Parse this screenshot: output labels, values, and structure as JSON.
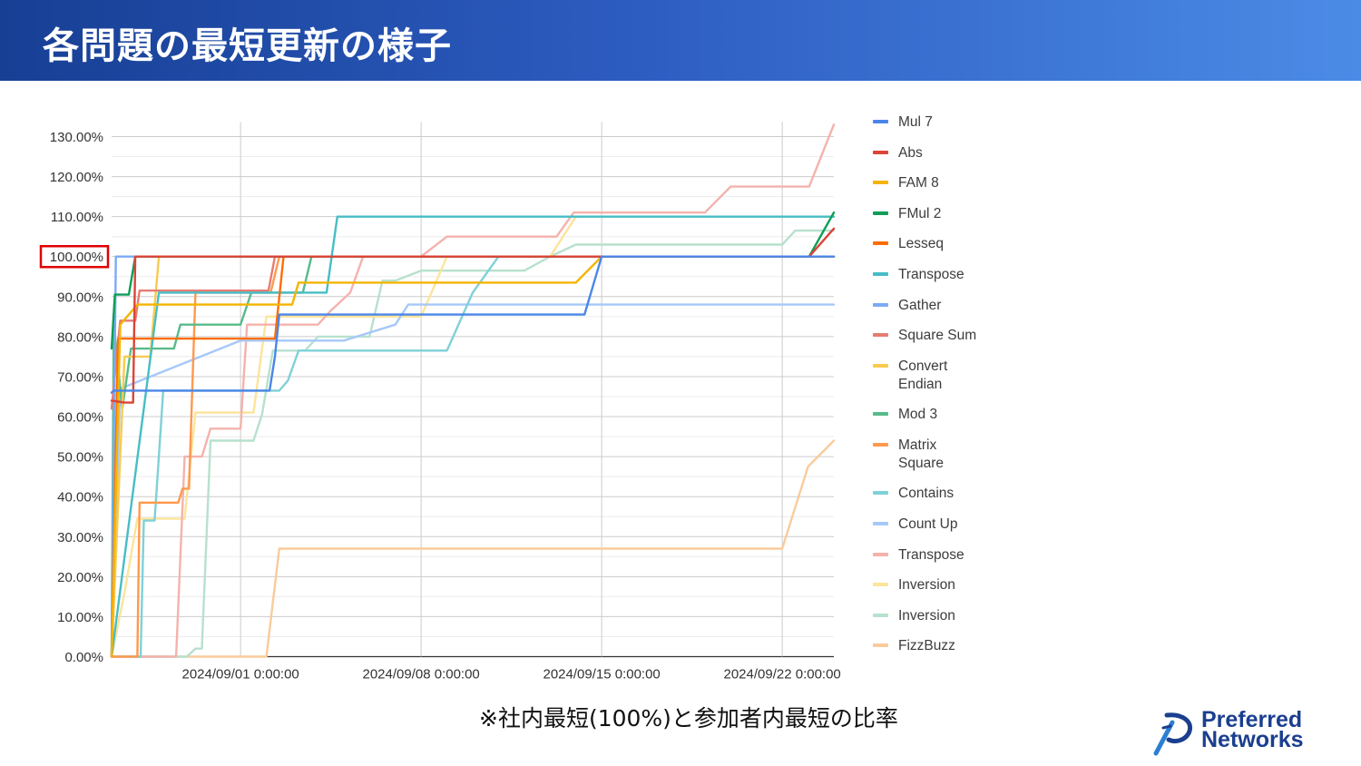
{
  "slide": {
    "title": "各問題の最短更新の様子",
    "footnote": "※社内最短(100%)と参加者内最短の比率",
    "logo_text": [
      "Preferred",
      "Networks"
    ],
    "header_gradient": [
      "#173f94",
      "#4b8be6"
    ],
    "highlight_color": "#e00000"
  },
  "chart_data": {
    "type": "line",
    "title": "",
    "xlabel": "",
    "ylabel": "",
    "x_type": "date",
    "xlim": [
      "2024/08/27 0:00:00",
      "2024/09/24 0:00:00"
    ],
    "ylim": [
      0,
      1.3
    ],
    "yticks": [
      0,
      0.1,
      0.2,
      0.3,
      0.4,
      0.5,
      0.6,
      0.7,
      0.8,
      0.9,
      1.0,
      1.1,
      1.2,
      1.3
    ],
    "ytick_labels": [
      "0.00%",
      "10.00%",
      "20.00%",
      "30.00%",
      "40.00%",
      "50.00%",
      "60.00%",
      "70.00%",
      "80.00%",
      "90.00%",
      "100.00%",
      "110.00%",
      "120.00%",
      "130.00%"
    ],
    "xticks": [
      "2024/09/01 0:00:00",
      "2024/09/08 0:00:00",
      "2024/09/15 0:00:00",
      "2024/09/22 0:00:00"
    ],
    "highlighted_tick": "100.00%",
    "grid": true,
    "legend_position": "right",
    "series": [
      {
        "name": "Mul 7",
        "color": "#4a86e8",
        "points": [
          [
            "2024/08/27 0:00",
            0.66
          ],
          [
            "2024/08/27 2:00",
            0.665
          ],
          [
            "2024/09/01 0:00",
            0.665
          ],
          [
            "2024/09/02 3:00",
            0.665
          ],
          [
            "2024/09/02 8:00",
            0.75
          ],
          [
            "2024/09/02 12:00",
            0.855
          ],
          [
            "2024/09/14 8:00",
            0.855
          ],
          [
            "2024/09/15 0:00",
            1.0
          ],
          [
            "2024/09/24 0:00",
            1.0
          ]
        ]
      },
      {
        "name": "Abs",
        "color": "#db4437",
        "points": [
          [
            "2024/08/27 0:00",
            0.64
          ],
          [
            "2024/08/27 12:00",
            0.635
          ],
          [
            "2024/08/27 20:00",
            0.635
          ],
          [
            "2024/08/27 22:00",
            1.0
          ],
          [
            "2024/09/23 1:00",
            1.0
          ],
          [
            "2024/09/24 0:00",
            1.07
          ]
        ]
      },
      {
        "name": "FAM 8",
        "color": "#f4b400",
        "points": [
          [
            "2024/08/27 0:00",
            0.0
          ],
          [
            "2024/08/27 8:00",
            0.83
          ],
          [
            "2024/08/28 0:00",
            0.88
          ],
          [
            "2024/09/03 0:00",
            0.88
          ],
          [
            "2024/09/03 6:00",
            0.935
          ],
          [
            "2024/09/14 0:00",
            0.935
          ],
          [
            "2024/09/15 0:00",
            1.0
          ],
          [
            "2024/09/24 0:00",
            1.0
          ]
        ]
      },
      {
        "name": "FMul 2",
        "color": "#0f9d58",
        "points": [
          [
            "2024/08/27 0:00",
            0.77
          ],
          [
            "2024/08/27 3:00",
            0.905
          ],
          [
            "2024/08/27 16:00",
            0.905
          ],
          [
            "2024/08/27 22:00",
            1.0
          ],
          [
            "2024/09/23 1:00",
            1.0
          ],
          [
            "2024/09/24 0:00",
            1.11
          ]
        ]
      },
      {
        "name": "Lesseq",
        "color": "#ff6d01",
        "points": [
          [
            "2024/08/27 0:00",
            0.0
          ],
          [
            "2024/08/27 6:00",
            0.795
          ],
          [
            "2024/09/02 8:00",
            0.795
          ],
          [
            "2024/09/02 16:00",
            1.0
          ],
          [
            "2024/09/24 0:00",
            1.0
          ]
        ]
      },
      {
        "name": "Transpose",
        "color": "#46bdc6",
        "points": [
          [
            "2024/08/27 0:00",
            0.0
          ],
          [
            "2024/08/28 20:00",
            0.91
          ],
          [
            "2024/09/01 0:00",
            0.91
          ],
          [
            "2024/09/04 8:00",
            0.91
          ],
          [
            "2024/09/04 18:00",
            1.1
          ],
          [
            "2024/09/24 0:00",
            1.1
          ]
        ]
      },
      {
        "name": "Gather",
        "color": "#7baaf7",
        "points": [
          [
            "2024/08/27 0:00",
            0.0
          ],
          [
            "2024/08/27 4:00",
            1.0
          ],
          [
            "2024/09/24 0:00",
            1.0
          ]
        ]
      },
      {
        "name": "Square Sum",
        "color": "#e67c73",
        "points": [
          [
            "2024/08/27 0:00",
            0.62
          ],
          [
            "2024/08/27 8:00",
            0.84
          ],
          [
            "2024/08/27 22:00",
            0.84
          ],
          [
            "2024/08/28 2:00",
            0.915
          ],
          [
            "2024/09/01 0:00",
            0.915
          ],
          [
            "2024/09/02 2:00",
            0.915
          ],
          [
            "2024/09/02 8:00",
            1.0
          ],
          [
            "2024/09/24 0:00",
            1.0
          ]
        ]
      },
      {
        "name": "Convert Endian",
        "color": "#f7cb4d",
        "points": [
          [
            "2024/08/27 0:00",
            0.0
          ],
          [
            "2024/08/27 12:00",
            0.75
          ],
          [
            "2024/08/28 12:00",
            0.75
          ],
          [
            "2024/08/28 20:00",
            1.0
          ],
          [
            "2024/09/24 0:00",
            1.0
          ]
        ]
      },
      {
        "name": "Mod 3",
        "color": "#57bb8a",
        "points": [
          [
            "2024/08/27 0:00",
            0.0
          ],
          [
            "2024/08/27 2:00",
            0.83
          ],
          [
            "2024/08/27 10:00",
            0.62
          ],
          [
            "2024/08/27 18:00",
            0.77
          ],
          [
            "2024/08/29 10:00",
            0.77
          ],
          [
            "2024/08/29 16:00",
            0.83
          ],
          [
            "2024/09/01 0:00",
            0.83
          ],
          [
            "2024/09/01 10:00",
            0.91
          ],
          [
            "2024/09/03 10:00",
            0.91
          ],
          [
            "2024/09/03 18:00",
            1.0
          ],
          [
            "2024/09/24 0:00",
            1.0
          ]
        ]
      },
      {
        "name": "Matrix Square",
        "color": "#ff994d",
        "points": [
          [
            "2024/08/27 0:00",
            0.0
          ],
          [
            "2024/08/28 0:00",
            0.0
          ],
          [
            "2024/08/28 2:00",
            0.385
          ],
          [
            "2024/08/29 14:00",
            0.385
          ],
          [
            "2024/08/29 18:00",
            0.42
          ],
          [
            "2024/08/30 0:00",
            0.42
          ],
          [
            "2024/08/30 6:00",
            0.91
          ],
          [
            "2024/09/01 0:00",
            0.91
          ],
          [
            "2024/09/02 4:00",
            0.91
          ],
          [
            "2024/09/02 12:00",
            1.0
          ],
          [
            "2024/09/24 0:00",
            1.0
          ]
        ]
      },
      {
        "name": "Contains",
        "color": "#7fd1d7",
        "points": [
          [
            "2024/08/27 0:00",
            0.0
          ],
          [
            "2024/08/28 3:00",
            0.0
          ],
          [
            "2024/08/28 6:00",
            0.34
          ],
          [
            "2024/08/28 16:00",
            0.34
          ],
          [
            "2024/08/29 0:00",
            0.665
          ],
          [
            "2024/08/29 12:00",
            0.665
          ],
          [
            "2024/09/01 0:00",
            0.665
          ],
          [
            "2024/09/02 12:00",
            0.665
          ],
          [
            "2024/09/02 20:00",
            0.69
          ],
          [
            "2024/09/03 6:00",
            0.765
          ],
          [
            "2024/09/07 0:00",
            0.765
          ],
          [
            "2024/09/08 0:00",
            0.765
          ],
          [
            "2024/09/09 0:00",
            0.765
          ],
          [
            "2024/09/10 0:00",
            0.91
          ],
          [
            "2024/09/11 0:00",
            1.0
          ],
          [
            "2024/09/24 0:00",
            1.0
          ]
        ]
      },
      {
        "name": "Count Up",
        "color": "#a6c8f9",
        "points": [
          [
            "2024/08/27 0:00",
            0.0
          ],
          [
            "2024/08/27 8:00",
            0.67
          ],
          [
            "2024/09/01 0:00",
            0.79
          ],
          [
            "2024/09/05 0:00",
            0.79
          ],
          [
            "2024/09/07 0:00",
            0.83
          ],
          [
            "2024/09/07 12:00",
            0.88
          ],
          [
            "2024/09/24 0:00",
            0.88
          ]
        ]
      },
      {
        "name": "Transpose",
        "color": "#f4b2ac",
        "points": [
          [
            "2024/08/27 0:00",
            0.0
          ],
          [
            "2024/08/29 12:00",
            0.0
          ],
          [
            "2024/08/29 20:00",
            0.5
          ],
          [
            "2024/08/30 12:00",
            0.5
          ],
          [
            "2024/08/30 20:00",
            0.57
          ],
          [
            "2024/09/01 0:00",
            0.57
          ],
          [
            "2024/09/01 6:00",
            0.83
          ],
          [
            "2024/09/02 0:00",
            0.83
          ],
          [
            "2024/09/02 12:00",
            0.83
          ],
          [
            "2024/09/04 0:00",
            0.83
          ],
          [
            "2024/09/04 12:00",
            0.865
          ],
          [
            "2024/09/05 6:00",
            0.91
          ],
          [
            "2024/09/05 18:00",
            1.0
          ],
          [
            "2024/09/08 0:00",
            1.0
          ],
          [
            "2024/09/09 0:00",
            1.05
          ],
          [
            "2024/09/13 6:00",
            1.05
          ],
          [
            "2024/09/13 22:00",
            1.11
          ],
          [
            "2024/09/19 0:00",
            1.11
          ],
          [
            "2024/09/20 0:00",
            1.175
          ],
          [
            "2024/09/23 1:00",
            1.175
          ],
          [
            "2024/09/24 0:00",
            1.33
          ]
        ]
      },
      {
        "name": "Inversion",
        "color": "#fce49a",
        "points": [
          [
            "2024/08/27 0:00",
            0.0
          ],
          [
            "2024/08/27 12:00",
            0.16
          ],
          [
            "2024/08/28 0:00",
            0.345
          ],
          [
            "2024/08/29 20:00",
            0.345
          ],
          [
            "2024/08/30 6:00",
            0.61
          ],
          [
            "2024/09/01 0:00",
            0.61
          ],
          [
            "2024/09/01 12:00",
            0.61
          ],
          [
            "2024/09/02 0:00",
            0.85
          ],
          [
            "2024/09/08 0:00",
            0.85
          ],
          [
            "2024/09/09 0:00",
            1.0
          ],
          [
            "2024/09/13 0:00",
            1.0
          ],
          [
            "2024/09/14 0:00",
            1.1
          ],
          [
            "2024/09/24 0:00",
            1.1
          ]
        ]
      },
      {
        "name": "Inversion",
        "color": "#b7e1cd",
        "points": [
          [
            "2024/08/27 0:00",
            0.0
          ],
          [
            "2024/08/29 22:00",
            0.0
          ],
          [
            "2024/08/30 6:00",
            0.02
          ],
          [
            "2024/08/30 12:00",
            0.02
          ],
          [
            "2024/08/30 20:00",
            0.54
          ],
          [
            "2024/09/01 0:00",
            0.54
          ],
          [
            "2024/09/01 12:00",
            0.54
          ],
          [
            "2024/09/01 20:00",
            0.605
          ],
          [
            "2024/09/02 6:00",
            0.765
          ],
          [
            "2024/09/02 12:00",
            0.765
          ],
          [
            "2024/09/03 12:00",
            0.765
          ],
          [
            "2024/09/04 0:00",
            0.8
          ],
          [
            "2024/09/05 0:00",
            0.8
          ],
          [
            "2024/09/06 0:00",
            0.8
          ],
          [
            "2024/09/06 12:00",
            0.94
          ],
          [
            "2024/09/07 0:00",
            0.94
          ],
          [
            "2024/09/08 0:00",
            0.965
          ],
          [
            "2024/09/11 0:00",
            0.965
          ],
          [
            "2024/09/12 0:00",
            0.965
          ],
          [
            "2024/09/13 0:00",
            1.0
          ],
          [
            "2024/09/14 0:00",
            1.03
          ],
          [
            "2024/09/20 0:00",
            1.03
          ],
          [
            "2024/09/22 0:00",
            1.03
          ],
          [
            "2024/09/22 12:00",
            1.065
          ],
          [
            "2024/09/24 0:00",
            1.065
          ]
        ]
      },
      {
        "name": "FizzBuzz",
        "color": "#f9cb9c",
        "points": [
          [
            "2024/08/27 0:00",
            0.0
          ],
          [
            "2024/09/02 0:00",
            0.0
          ],
          [
            "2024/09/02 12:00",
            0.27
          ],
          [
            "2024/09/22 0:00",
            0.27
          ],
          [
            "2024/09/23 0:00",
            0.475
          ],
          [
            "2024/09/24 0:00",
            0.54
          ]
        ]
      }
    ]
  }
}
